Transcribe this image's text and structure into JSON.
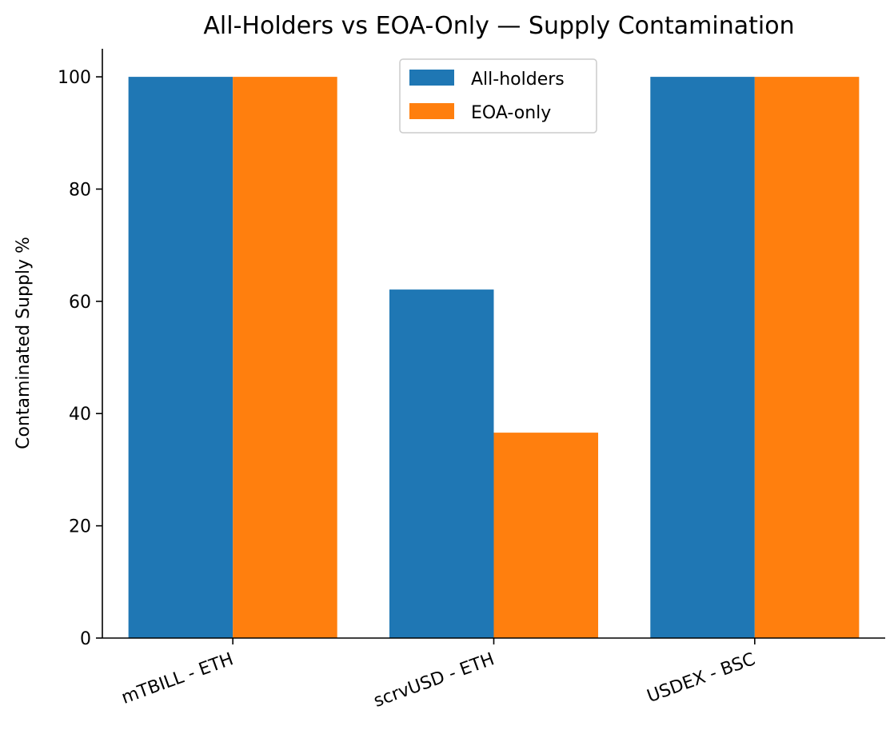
{
  "chart_data": {
    "type": "bar",
    "title": "All-Holders vs EOA-Only — Supply Contamination",
    "xlabel": "",
    "ylabel": "Contaminated Supply %",
    "categories": [
      "mTBILL - ETH",
      "scrvUSD - ETH",
      "USDEX - BSC"
    ],
    "series": [
      {
        "name": "All-holders",
        "color": "#1f77b4",
        "values": [
          100,
          62.1,
          100
        ]
      },
      {
        "name": "EOA-only",
        "color": "#ff7f0e",
        "values": [
          100,
          36.6,
          100
        ]
      }
    ],
    "ylim": [
      0,
      105
    ],
    "yticks": [
      0,
      20,
      40,
      60,
      80,
      100
    ],
    "ytick_labels": [
      "0",
      "20",
      "40",
      "60",
      "80",
      "100"
    ],
    "grid": false,
    "legend_position": "top-center"
  }
}
